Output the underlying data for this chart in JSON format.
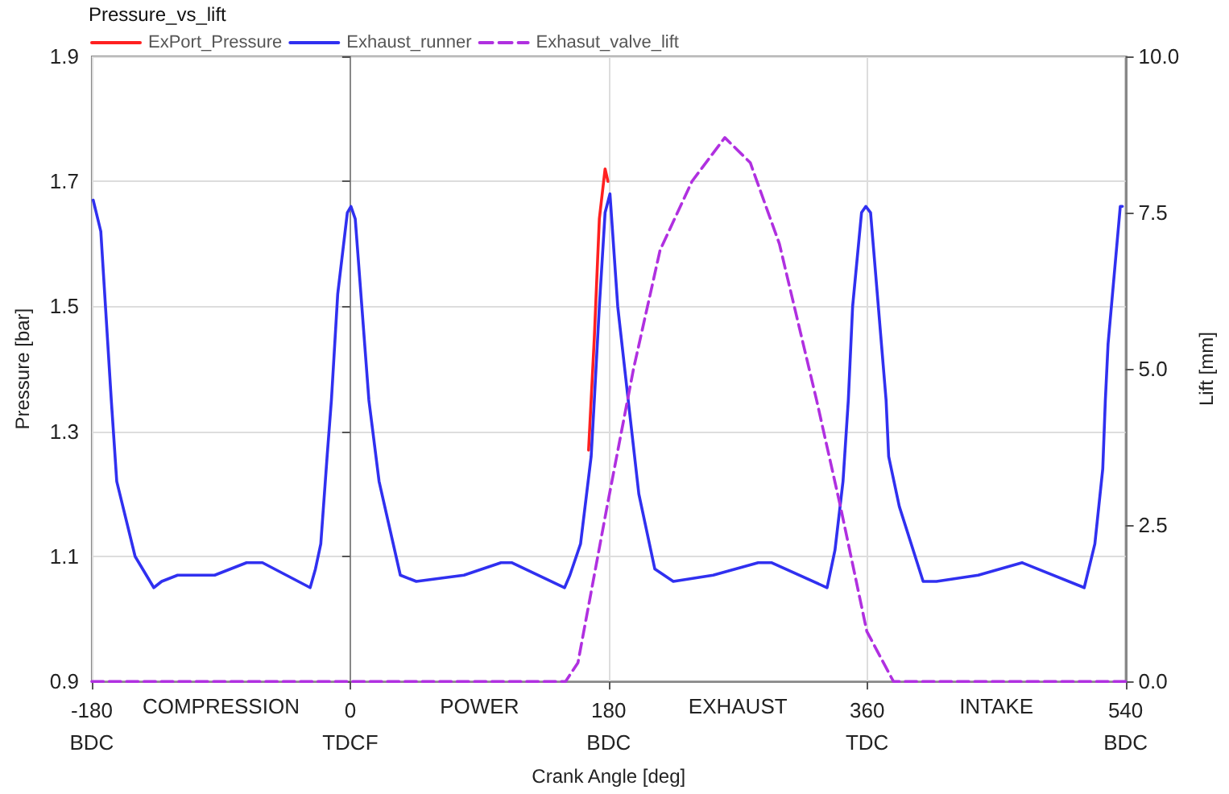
{
  "chart_data": {
    "type": "line",
    "title": "Pressure_vs_lift",
    "xlabel": "Crank Angle [deg]",
    "ylabel": "Pressure [bar]",
    "y2label": "Lift [mm]",
    "annotations": [
      "COMPRESSION",
      "POWER",
      "EXHAUST",
      "INTAKE"
    ],
    "x": [
      -179,
      -173.7,
      -166.4,
      -162.6,
      -149.8,
      -136.8,
      -131.3,
      -120.2,
      -94.4,
      -72.2,
      -61.1,
      -27.9,
      -24.2,
      -20.5,
      -16.1,
      -13.1,
      -8.7,
      -2.0,
      0.5,
      3.5,
      13.0,
      20.1,
      34.9,
      46.0,
      79.2,
      105.0,
      112.4,
      149.3,
      153.0,
      160.4,
      167.8,
      170,
      173.5,
      177.5,
      180.9,
      186.3,
      193.6,
      201.0,
      212.1,
      225.0,
      252.8,
      284.1,
      293.3,
      332.1,
      337.6,
      343.2,
      346.9,
      349.9,
      356.1,
      359.1,
      362.4,
      373.2,
      375.0,
      382.4,
      399.0,
      408.3,
      437.4,
      467.9,
      511.2,
      518.6,
      524.1,
      525.9,
      527.8,
      536.3,
      537.8
    ],
    "series": [
      {
        "name": "ExPort_Pressure",
        "color": "#ff2020",
        "x": [
          166,
          170,
          173.5,
          177.5,
          179.5
        ],
        "values": [
          1.27,
          1.45,
          1.64,
          1.72,
          1.7
        ]
      },
      {
        "name": "Exhaust_runner",
        "color": "#3030f0",
        "values": [
          1.67,
          1.62,
          1.35,
          1.22,
          1.1,
          1.05,
          1.06,
          1.07,
          1.07,
          1.09,
          1.09,
          1.05,
          1.08,
          1.12,
          1.26,
          1.35,
          1.52,
          1.65,
          1.66,
          1.64,
          1.35,
          1.22,
          1.07,
          1.06,
          1.07,
          1.09,
          1.09,
          1.05,
          1.07,
          1.12,
          1.26,
          1.35,
          1.5,
          1.65,
          1.68,
          1.5,
          1.35,
          1.2,
          1.08,
          1.06,
          1.07,
          1.09,
          1.09,
          1.05,
          1.11,
          1.22,
          1.35,
          1.5,
          1.65,
          1.66,
          1.65,
          1.35,
          1.26,
          1.18,
          1.06,
          1.06,
          1.07,
          1.09,
          1.05,
          1.12,
          1.24,
          1.35,
          1.44,
          1.66,
          1.66
        ]
      },
      {
        "name": "Exhasut_valve_lift",
        "color": "#b030e0",
        "axis": "y2",
        "line_style": "dashed",
        "x": [
          -180,
          150,
          158.6,
          178.9,
          197.3,
          215.8,
          238.0,
          260.9,
          278.6,
          298.9,
          324.8,
          341.4,
          359.8,
          378.3,
          540
        ],
        "values": [
          0,
          0,
          0.3,
          2.8,
          5.0,
          6.9,
          8.0,
          8.7,
          8.3,
          7.0,
          4.5,
          2.8,
          0.8,
          0,
          0
        ]
      }
    ],
    "xlim": [
      -180,
      540
    ],
    "xticks": [
      {
        "value": -180,
        "label": "-180\nBDC"
      },
      {
        "value": 0,
        "label": "0\nTDCF"
      },
      {
        "value": 180,
        "label": "180\nBDC"
      },
      {
        "value": 360,
        "label": "360\nTDC"
      },
      {
        "value": 540,
        "label": "540\nBDC"
      }
    ],
    "ylim": [
      0.9,
      1.9
    ],
    "yticks": [
      0.9,
      1.1,
      1.3,
      1.5,
      1.7,
      1.9
    ],
    "y2lim": [
      0,
      10
    ],
    "y2ticks": [
      {
        "value": 0,
        "label": "0.0"
      },
      {
        "value": 2.5,
        "label": "2.5"
      },
      {
        "value": 5,
        "label": "5.0"
      },
      {
        "value": 7.5,
        "label": "7.5"
      },
      {
        "value": 10,
        "label": "10.0"
      }
    ],
    "grid": true,
    "legend": "top left",
    "marker": "none",
    "line_style": "solid"
  }
}
